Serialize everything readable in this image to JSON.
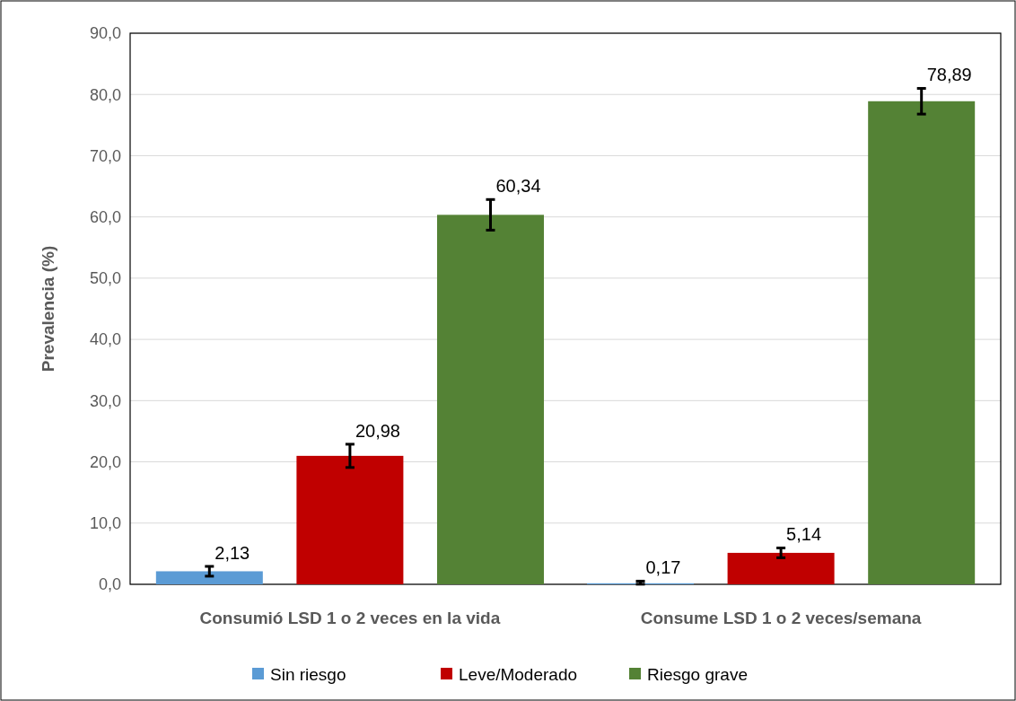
{
  "chart_data": {
    "type": "bar",
    "ylabel": "Prevalencia (%)",
    "categories": [
      "Consumió LSD 1 o 2 veces en la vida",
      "Consume LSD 1 o 2 veces/semana"
    ],
    "series": [
      {
        "name": "Sin riesgo",
        "color": "#5b9bd5",
        "values": [
          2.13,
          0.17
        ],
        "errors": [
          0.8,
          [
            0.15,
            0.35
          ]
        ],
        "value_labels": [
          "2,13",
          "0,17"
        ]
      },
      {
        "name": "Leve/Moderado",
        "color": "#c00000",
        "values": [
          20.98,
          5.14
        ],
        "errors": [
          1.9,
          0.8
        ],
        "value_labels": [
          "20,98",
          "5,14"
        ]
      },
      {
        "name": "Riesgo grave",
        "color": "#548235",
        "values": [
          60.34,
          78.89
        ],
        "errors": [
          2.5,
          2.1
        ],
        "value_labels": [
          "60,34",
          "78,89"
        ]
      }
    ],
    "ylim": [
      0,
      90
    ],
    "yticks": [
      {
        "value": 0,
        "label": "0,0"
      },
      {
        "value": 10,
        "label": "10,0"
      },
      {
        "value": 20,
        "label": "20,0"
      },
      {
        "value": 30,
        "label": "30,0"
      },
      {
        "value": 40,
        "label": "40,0"
      },
      {
        "value": 50,
        "label": "50,0"
      },
      {
        "value": 60,
        "label": "60,0"
      },
      {
        "value": 70,
        "label": "70,0"
      },
      {
        "value": 80,
        "label": "80,0"
      },
      {
        "value": 90,
        "label": "90,0"
      }
    ],
    "grid": "y",
    "legend": "bottom"
  }
}
